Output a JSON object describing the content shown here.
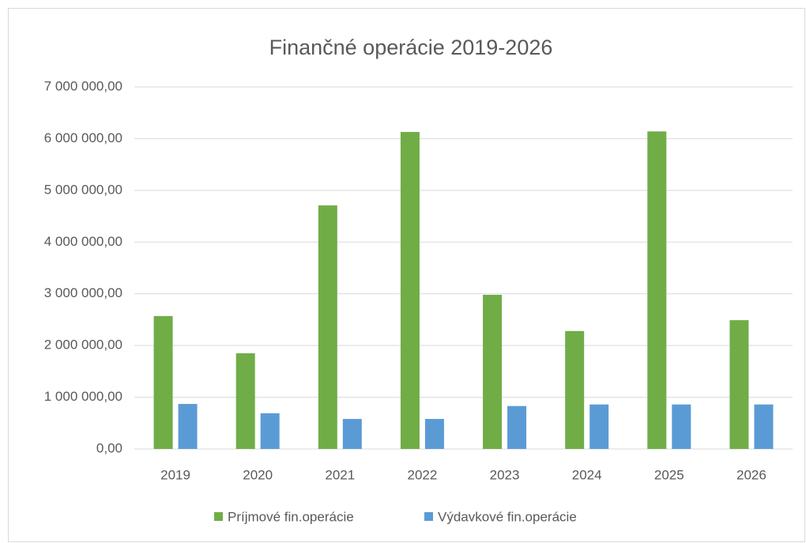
{
  "chart_data": {
    "type": "bar",
    "title": "Finančné operácie 2019-2026",
    "categories": [
      "2019",
      "2020",
      "2021",
      "2022",
      "2023",
      "2024",
      "2025",
      "2026"
    ],
    "series": [
      {
        "name": "Príjmové fin.operácie",
        "color": "#70ad47",
        "values": [
          2570000,
          1850000,
          4710000,
          6130000,
          2980000,
          2280000,
          6140000,
          2490000
        ]
      },
      {
        "name": "Výdavkové fin.operácie",
        "color": "#5b9bd5",
        "values": [
          870000,
          690000,
          580000,
          580000,
          830000,
          860000,
          860000,
          860000
        ]
      }
    ],
    "ylim": [
      0,
      7000000
    ],
    "yticks": [
      {
        "value": 0,
        "label": "0,00"
      },
      {
        "value": 1000000,
        "label": "1 000 000,00"
      },
      {
        "value": 2000000,
        "label": "2 000 000,00"
      },
      {
        "value": 3000000,
        "label": "3 000 000,00"
      },
      {
        "value": 4000000,
        "label": "4 000 000,00"
      },
      {
        "value": 5000000,
        "label": "5 000 000,00"
      },
      {
        "value": 6000000,
        "label": "6 000 000,00"
      },
      {
        "value": 7000000,
        "label": "7 000 000,00"
      }
    ],
    "grid": true,
    "legend": "bottom"
  }
}
